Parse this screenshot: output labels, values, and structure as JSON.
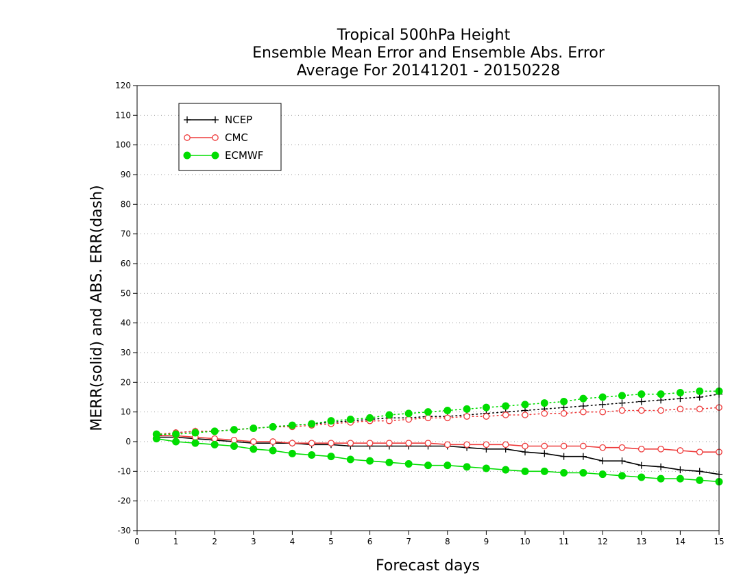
{
  "chart_data": {
    "type": "line",
    "title": [
      "Tropical 500hPa Height",
      "Ensemble Mean Error and Ensemble Abs. Error",
      "Average For 20141201 - 20150228"
    ],
    "xlabel": "Forecast days",
    "ylabel": "MERR(solid) and ABS. ERR(dash)",
    "xlim": [
      0,
      15
    ],
    "ylim": [
      -30,
      120
    ],
    "x_ticks": [
      0,
      1,
      2,
      3,
      4,
      5,
      6,
      7,
      8,
      9,
      10,
      11,
      12,
      13,
      14,
      15
    ],
    "y_ticks": [
      -30,
      -20,
      -10,
      0,
      10,
      20,
      30,
      40,
      50,
      60,
      70,
      80,
      90,
      100,
      110,
      120
    ],
    "grid": true,
    "legend_position": "top-left",
    "x": [
      0.5,
      1,
      1.5,
      2,
      2.5,
      3,
      3.5,
      4,
      4.5,
      5,
      5.5,
      6,
      6.5,
      7,
      7.5,
      8,
      8.5,
      9,
      9.5,
      10,
      10.5,
      11,
      11.5,
      12,
      12.5,
      13,
      13.5,
      14,
      14.5,
      15
    ],
    "series": [
      {
        "name": "NCEP",
        "color": "#000000",
        "marker": "plus",
        "merr": [
          1.5,
          1.5,
          1.0,
          0.5,
          0,
          -0.5,
          -0.5,
          -0.5,
          -1,
          -1,
          -1.5,
          -1.5,
          -1.5,
          -1.5,
          -1.5,
          -1.5,
          -2,
          -2.5,
          -2.5,
          -3.5,
          -4,
          -5,
          -5,
          -6.5,
          -6.5,
          -8,
          -8.5,
          -9.5,
          -10,
          -11
        ],
        "abs_err": [
          2,
          3,
          3.5,
          3.5,
          4,
          4.5,
          5,
          5.5,
          6,
          6.5,
          7,
          7.5,
          8,
          8,
          8.5,
          8.5,
          9,
          9.5,
          10,
          10.5,
          11,
          11.5,
          12,
          12.5,
          13,
          13.5,
          14,
          14.5,
          15,
          16
        ]
      },
      {
        "name": "CMC",
        "color": "#ee3b3b",
        "marker": "open-circle",
        "merr": [
          2,
          2,
          1.5,
          1,
          0.5,
          0,
          0,
          -0.5,
          -0.5,
          -0.5,
          -0.5,
          -0.5,
          -0.5,
          -0.5,
          -0.5,
          -1,
          -1,
          -1,
          -1,
          -1.5,
          -1.5,
          -1.5,
          -1.5,
          -2,
          -2,
          -2.5,
          -2.5,
          -3,
          -3.5,
          -3.5
        ],
        "abs_err": [
          2.5,
          3,
          3.5,
          3.5,
          4,
          4.5,
          5,
          5,
          5.5,
          6,
          6.5,
          7,
          7,
          7.5,
          8,
          8,
          8.5,
          8.5,
          9,
          9,
          9.5,
          9.5,
          10,
          10,
          10.5,
          10.5,
          10.5,
          11,
          11,
          11.5
        ]
      },
      {
        "name": "ECMWF",
        "color": "#00dd00",
        "marker": "filled-circle",
        "merr": [
          1,
          0,
          -0.5,
          -1,
          -1.5,
          -2.5,
          -3,
          -4,
          -4.5,
          -5,
          -6,
          -6.5,
          -7,
          -7.5,
          -8,
          -8,
          -8.5,
          -9,
          -9.5,
          -10,
          -10,
          -10.5,
          -10.5,
          -11,
          -11.5,
          -12,
          -12.5,
          -12.5,
          -13,
          -13.5
        ],
        "abs_err": [
          2.5,
          2.5,
          3,
          3.5,
          4,
          4.5,
          5,
          5.5,
          6,
          7,
          7.5,
          8,
          9,
          9.5,
          10,
          10.5,
          11,
          11.5,
          12,
          12.5,
          13,
          13.5,
          14.5,
          15,
          15.5,
          16,
          16,
          16.5,
          17,
          17
        ]
      }
    ]
  }
}
